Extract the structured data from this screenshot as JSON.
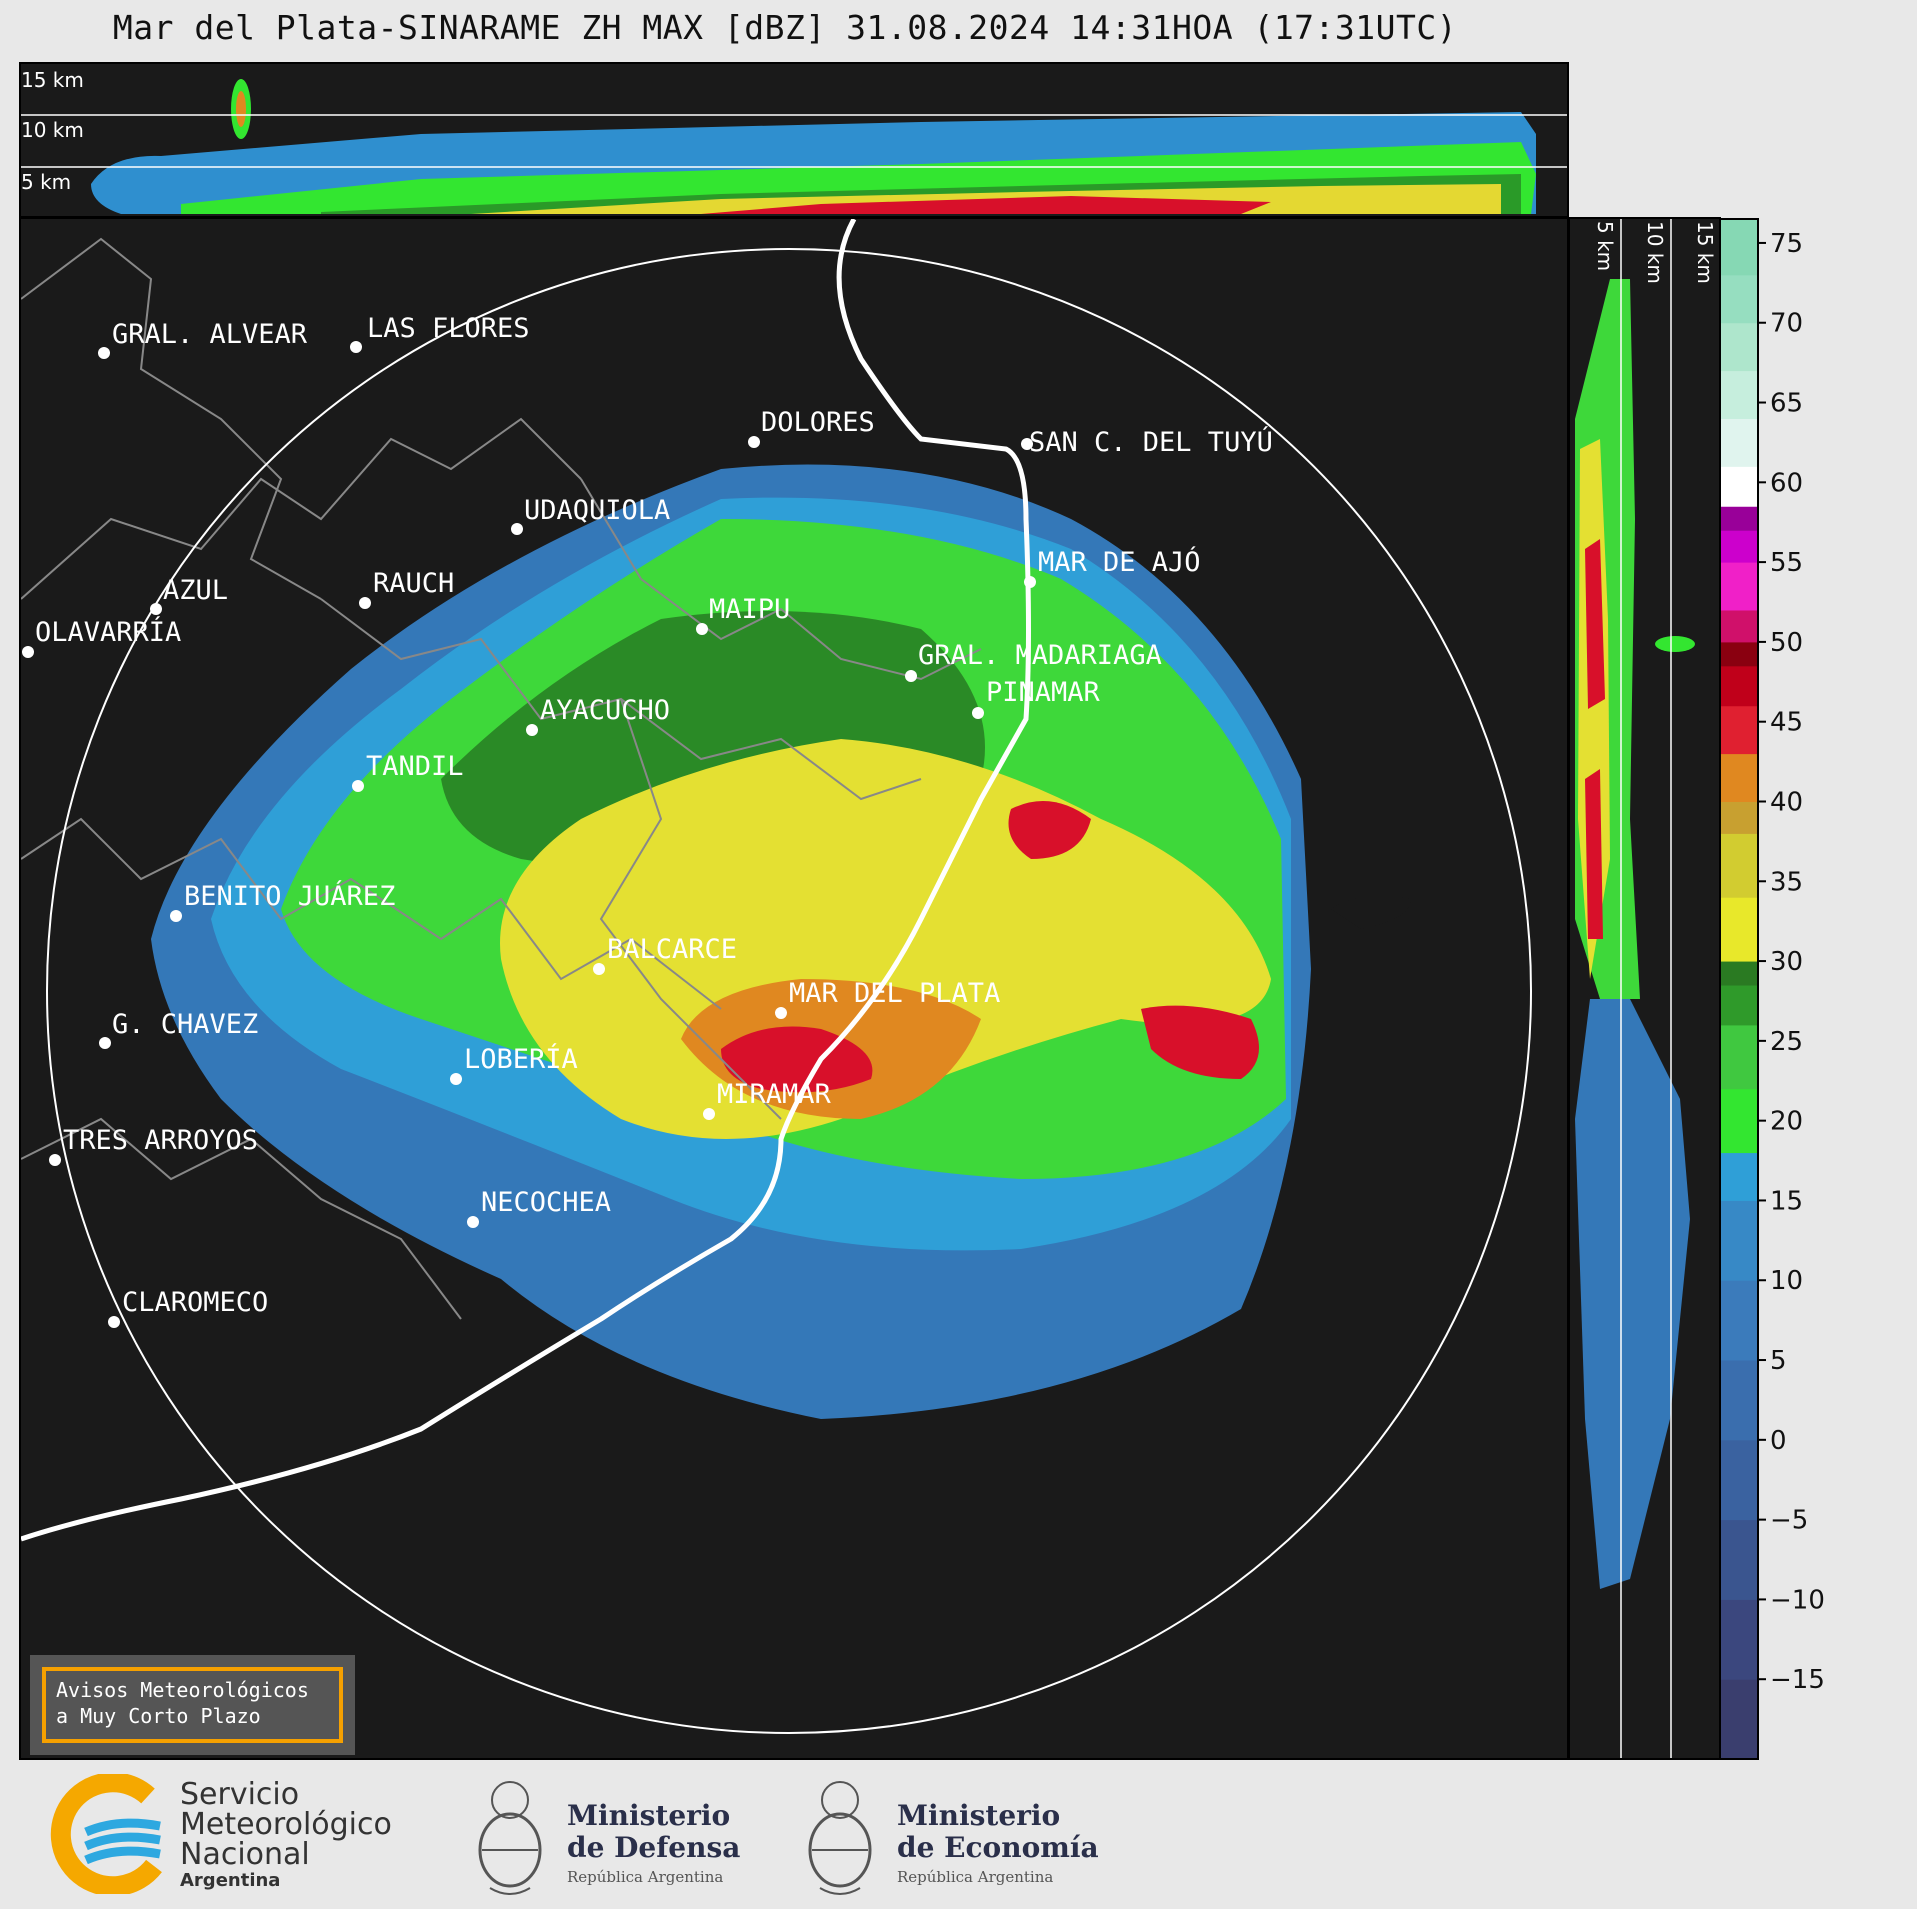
{
  "title": "Mar del Plata-SINARAME ZH MAX [dBZ] 31.08.2024 14:31HOA (17:31UTC)",
  "top_altitude_labels": [
    "15 km",
    "10 km",
    "5 km"
  ],
  "side_altitude_labels": [
    "5 km",
    "10 km",
    "15 km"
  ],
  "cities": [
    {
      "name": "GRAL. ALVEAR"
    },
    {
      "name": "LAS FLORES"
    },
    {
      "name": "DOLORES"
    },
    {
      "name": "SAN C. DEL TUYÚ"
    },
    {
      "name": "UDAQUIOLA"
    },
    {
      "name": "MAR DE AJÓ"
    },
    {
      "name": "AZUL"
    },
    {
      "name": "RAUCH"
    },
    {
      "name": "OLAVARRÍA"
    },
    {
      "name": "MAIPU"
    },
    {
      "name": "GRAL. MADARIAGA"
    },
    {
      "name": "PINAMAR"
    },
    {
      "name": "AYACUCHO"
    },
    {
      "name": "TANDIL"
    },
    {
      "name": "BENITO JUÁREZ"
    },
    {
      "name": "BALCARCE"
    },
    {
      "name": "MAR DEL PLATA"
    },
    {
      "name": "G. CHAVEZ"
    },
    {
      "name": "LOBERÍA"
    },
    {
      "name": "MIRAMAR"
    },
    {
      "name": "TRES ARROYOS"
    },
    {
      "name": "NECOCHEA"
    },
    {
      "name": "CLAROMECO"
    }
  ],
  "colorbar": {
    "ticks": [
      "75",
      "70",
      "65",
      "60",
      "55",
      "50",
      "45",
      "40",
      "35",
      "30",
      "25",
      "20",
      "15",
      "10",
      "5",
      "0",
      "−5",
      "−10",
      "−15"
    ],
    "min": -20,
    "max": 76.5,
    "stops": [
      {
        "from": -20,
        "color": "#3a3e6e"
      },
      {
        "from": -15,
        "color": "#3b477e"
      },
      {
        "from": -10,
        "color": "#3a558f"
      },
      {
        "from": -5,
        "color": "#3a62a0"
      },
      {
        "from": 0,
        "color": "#3a6eae"
      },
      {
        "from": 5,
        "color": "#3b7bbb"
      },
      {
        "from": 10,
        "color": "#3789c6"
      },
      {
        "from": 15,
        "color": "#2f9fd7"
      },
      {
        "from": 18,
        "color": "#33e630"
      },
      {
        "from": 22,
        "color": "#40c840"
      },
      {
        "from": 26,
        "color": "#2f9a2a"
      },
      {
        "from": 28.5,
        "color": "#2a7a22"
      },
      {
        "from": 30,
        "color": "#e8e82a"
      },
      {
        "from": 34,
        "color": "#d2cc30"
      },
      {
        "from": 38,
        "color": "#c8a030"
      },
      {
        "from": 40,
        "color": "#e08820"
      },
      {
        "from": 43,
        "color": "#e02030"
      },
      {
        "from": 46,
        "color": "#c0001a"
      },
      {
        "from": 48.5,
        "color": "#8a0010"
      },
      {
        "from": 50,
        "color": "#d0106a"
      },
      {
        "from": 52,
        "color": "#f020c8"
      },
      {
        "from": 55,
        "color": "#cc00cc"
      },
      {
        "from": 57,
        "color": "#990099"
      },
      {
        "from": 58.5,
        "color": "#ffffff"
      },
      {
        "from": 61,
        "color": "#e0f4ee"
      },
      {
        "from": 64,
        "color": "#c6eedd"
      },
      {
        "from": 67,
        "color": "#aee6cc"
      },
      {
        "from": 70,
        "color": "#96dec0"
      },
      {
        "from": 73,
        "color": "#86d8b4"
      }
    ]
  },
  "alert_box": {
    "line1": "Avisos Meteorológicos",
    "line2": "a Muy Corto Plazo"
  },
  "footer": {
    "smn": {
      "line1": "Servicio",
      "line2": "Meteorológico",
      "line3": "Nacional",
      "line4": "Argentina"
    },
    "defensa": {
      "line1": "Ministerio",
      "line2": "de Defensa",
      "line3": "República Argentina"
    },
    "economia": {
      "line1": "Ministerio",
      "line2": "de Economía",
      "line3": "República Argentina"
    }
  }
}
